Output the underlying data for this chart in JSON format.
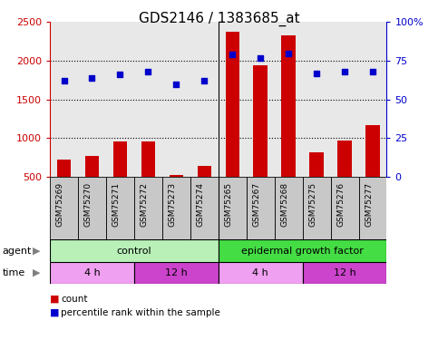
{
  "title": "GDS2146 / 1383685_at",
  "samples": [
    "GSM75269",
    "GSM75270",
    "GSM75271",
    "GSM75272",
    "GSM75273",
    "GSM75274",
    "GSM75265",
    "GSM75267",
    "GSM75268",
    "GSM75275",
    "GSM75276",
    "GSM75277"
  ],
  "counts": [
    720,
    770,
    960,
    960,
    520,
    640,
    2380,
    1940,
    2330,
    820,
    970,
    1170
  ],
  "percentiles": [
    62,
    64,
    66,
    68,
    60,
    62,
    79,
    77,
    80,
    67,
    68,
    68
  ],
  "ylim_left": [
    500,
    2500
  ],
  "ylim_right": [
    0,
    100
  ],
  "yticks_left": [
    500,
    1000,
    1500,
    2000,
    2500
  ],
  "yticks_right": [
    0,
    25,
    50,
    75,
    100
  ],
  "yticklabels_right": [
    "0",
    "25",
    "50",
    "75",
    "100%"
  ],
  "bar_color": "#cc0000",
  "dot_color": "#0000cc",
  "bar_width": 0.5,
  "agent_row": [
    {
      "label": "control",
      "start": 0,
      "end": 6,
      "color": "#b8f0b8"
    },
    {
      "label": "epidermal growth factor",
      "start": 6,
      "end": 12,
      "color": "#44dd44"
    }
  ],
  "time_row": [
    {
      "label": "4 h",
      "start": 0,
      "end": 3,
      "color": "#f0a0f0"
    },
    {
      "label": "12 h",
      "start": 3,
      "end": 6,
      "color": "#cc44cc"
    },
    {
      "label": "4 h",
      "start": 6,
      "end": 9,
      "color": "#f0a0f0"
    },
    {
      "label": "12 h",
      "start": 9,
      "end": 12,
      "color": "#cc44cc"
    }
  ],
  "xlabel_agent": "agent",
  "xlabel_time": "time",
  "legend_count": "count",
  "legend_percentile": "percentile rank within the sample",
  "plot_bg_color": "#e8e8e8",
  "sample_box_color": "#c8c8c8",
  "title_fontsize": 11,
  "tick_fontsize": 8,
  "annotation_fontsize": 8,
  "sample_fontsize": 6.5
}
